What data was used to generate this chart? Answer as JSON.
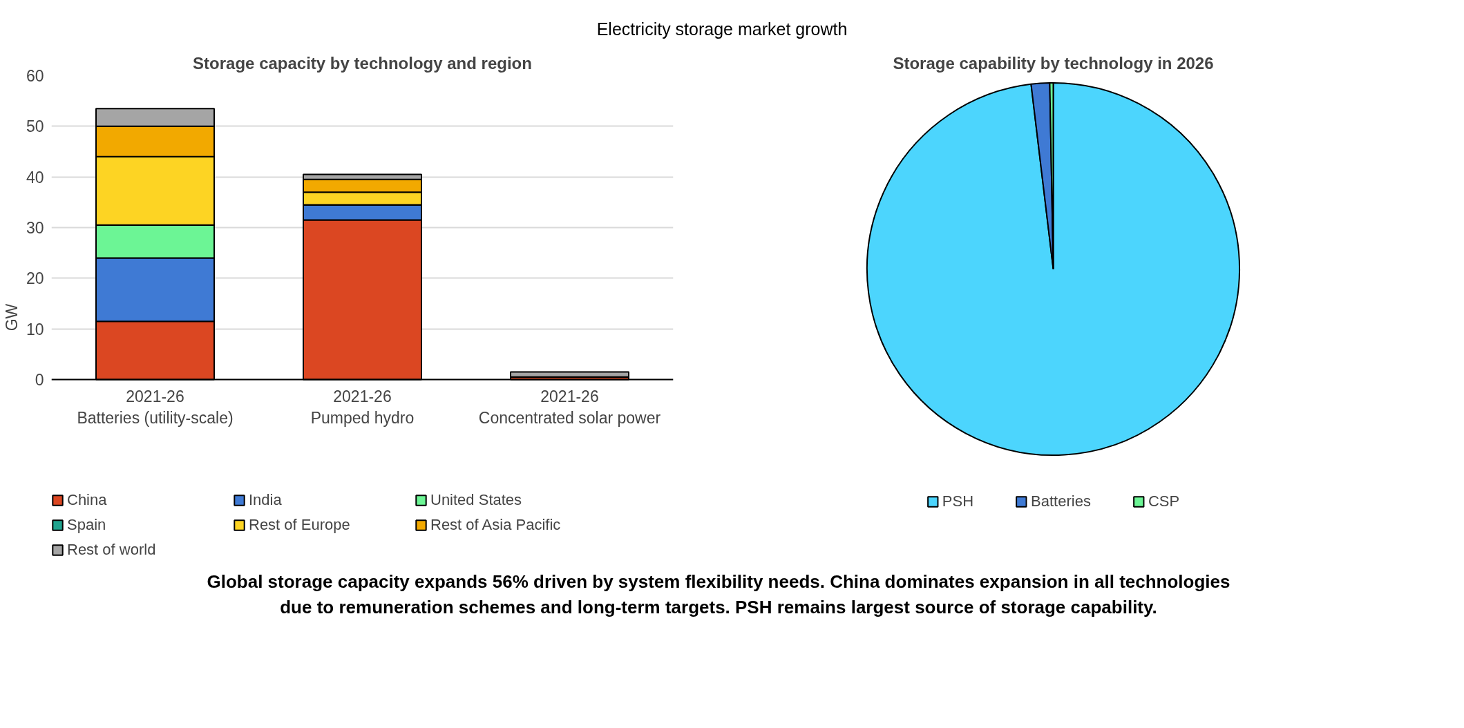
{
  "chart_data": [
    {
      "type": "bar",
      "title": "Storage capacity by technology and region",
      "ylabel": "GW",
      "stacked": true,
      "categories": [
        "2021-26\nBatteries (utility-scale)",
        "2021-26\nPumped hydro",
        "2021-26\nConcentrated solar power"
      ],
      "series": [
        {
          "name": "China",
          "color": "#db4722",
          "values": [
            11.5,
            31.5,
            0.5
          ]
        },
        {
          "name": "India",
          "color": "#3f7ad4",
          "values": [
            12.5,
            3,
            0
          ]
        },
        {
          "name": "United States",
          "color": "#6cf595",
          "values": [
            6.5,
            0,
            0
          ]
        },
        {
          "name": "Spain",
          "color": "#1fa38e",
          "values": [
            0,
            0,
            0
          ]
        },
        {
          "name": "Rest of Europe",
          "color": "#fdd423",
          "values": [
            13.5,
            2.5,
            0
          ]
        },
        {
          "name": "Rest of Asia Pacific",
          "color": "#f2a900",
          "values": [
            6,
            2.5,
            0
          ]
        },
        {
          "name": "Rest of world",
          "color": "#a5a5a5",
          "values": [
            3.5,
            1,
            1
          ]
        }
      ],
      "ylim": [
        0,
        60
      ],
      "yticks": [
        0,
        10,
        20,
        30,
        40,
        50,
        60
      ],
      "grid": "y",
      "legend": "bottom",
      "annotations": [
        "Electricity storage market growth",
        "Global storage capacity expands 56% driven by system flexibility needs. China dominates expansion in all technologies due to remuneration schemes and long-term targets. PSH remains largest source of storage capability."
      ]
    },
    {
      "type": "pie",
      "title": "Storage capability by technology in 2026",
      "categories": [
        "PSH",
        "Batteries",
        "CSP"
      ],
      "values": [
        98.1,
        1.6,
        0.3
      ],
      "colors": [
        "#4cd5fd",
        "#3f7ad4",
        "#6cf595"
      ],
      "legend": "bottom"
    }
  ]
}
